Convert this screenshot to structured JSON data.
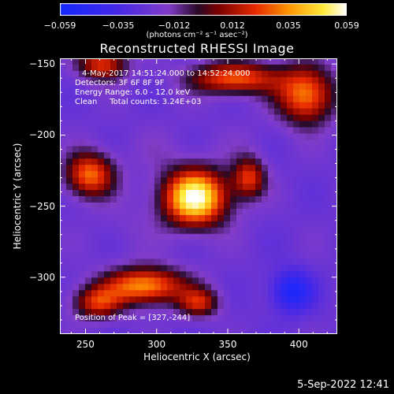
{
  "chart_data": {
    "type": "heatmap",
    "title": "Reconstructed RHESSI Image",
    "xlabel": "Heliocentric X (arcsec)",
    "ylabel": "Heliocentric Y (arcsec)",
    "xlim": [
      232,
      427
    ],
    "ylim": [
      -340,
      -146
    ],
    "x_ticks": [
      250,
      300,
      350,
      400
    ],
    "x_tick_labels": [
      "250",
      "300",
      "350",
      "400"
    ],
    "y_ticks": [
      -150,
      -200,
      -250,
      -300
    ],
    "y_tick_labels": [
      "−150",
      "−200",
      "−250",
      "−300"
    ],
    "colorbar": {
      "range": [
        -0.059,
        0.059
      ],
      "ticks": [
        -0.059,
        -0.035,
        -0.012,
        0.012,
        0.035,
        0.059
      ],
      "tick_labels": [
        "−0.059",
        "−0.035",
        "−0.012",
        "0.012",
        "0.035",
        "0.059"
      ],
      "unit": "(photons cm⁻² s⁻¹ asec⁻²)"
    },
    "sources": [
      {
        "x": 327,
        "y": -244,
        "value": 0.059,
        "sx": 16,
        "sy": 14
      },
      {
        "x": 292,
        "y": -306,
        "value": 0.036,
        "sx": 20,
        "sy": 9
      },
      {
        "x": 405,
        "y": -172,
        "value": 0.032,
        "sx": 14,
        "sy": 14
      },
      {
        "x": 355,
        "y": -160,
        "value": 0.028,
        "sx": 22,
        "sy": 8
      },
      {
        "x": 253,
        "y": -228,
        "value": 0.03,
        "sx": 12,
        "sy": 11
      },
      {
        "x": 262,
        "y": -150,
        "value": 0.022,
        "sx": 12,
        "sy": 8
      },
      {
        "x": 258,
        "y": -318,
        "value": 0.018,
        "sx": 12,
        "sy": 8
      },
      {
        "x": 330,
        "y": -318,
        "value": 0.015,
        "sx": 10,
        "sy": 7
      },
      {
        "x": 365,
        "y": -230,
        "value": 0.02,
        "sx": 8,
        "sy": 10
      },
      {
        "x": 360,
        "y": -205,
        "value": -0.02,
        "sx": 14,
        "sy": 12
      },
      {
        "x": 300,
        "y": -210,
        "value": -0.018,
        "sx": 16,
        "sy": 12
      },
      {
        "x": 280,
        "y": -265,
        "value": -0.018,
        "sx": 14,
        "sy": 14
      },
      {
        "x": 395,
        "y": -310,
        "value": -0.055,
        "sx": 10,
        "sy": 10
      }
    ]
  },
  "annotations": {
    "time_range": "4-May-2017 14:51:24.000 to 14:52:24.000",
    "detectors": "Detectors: 3F 6F 8F 9F",
    "energy": "Energy Range: 6.0 - 12.0 keV",
    "clean": "Clean     Total counts: 3.24E+03",
    "peak": "Position of Peak = [327,-244]"
  },
  "footer": "5-Sep-2022 12:41"
}
